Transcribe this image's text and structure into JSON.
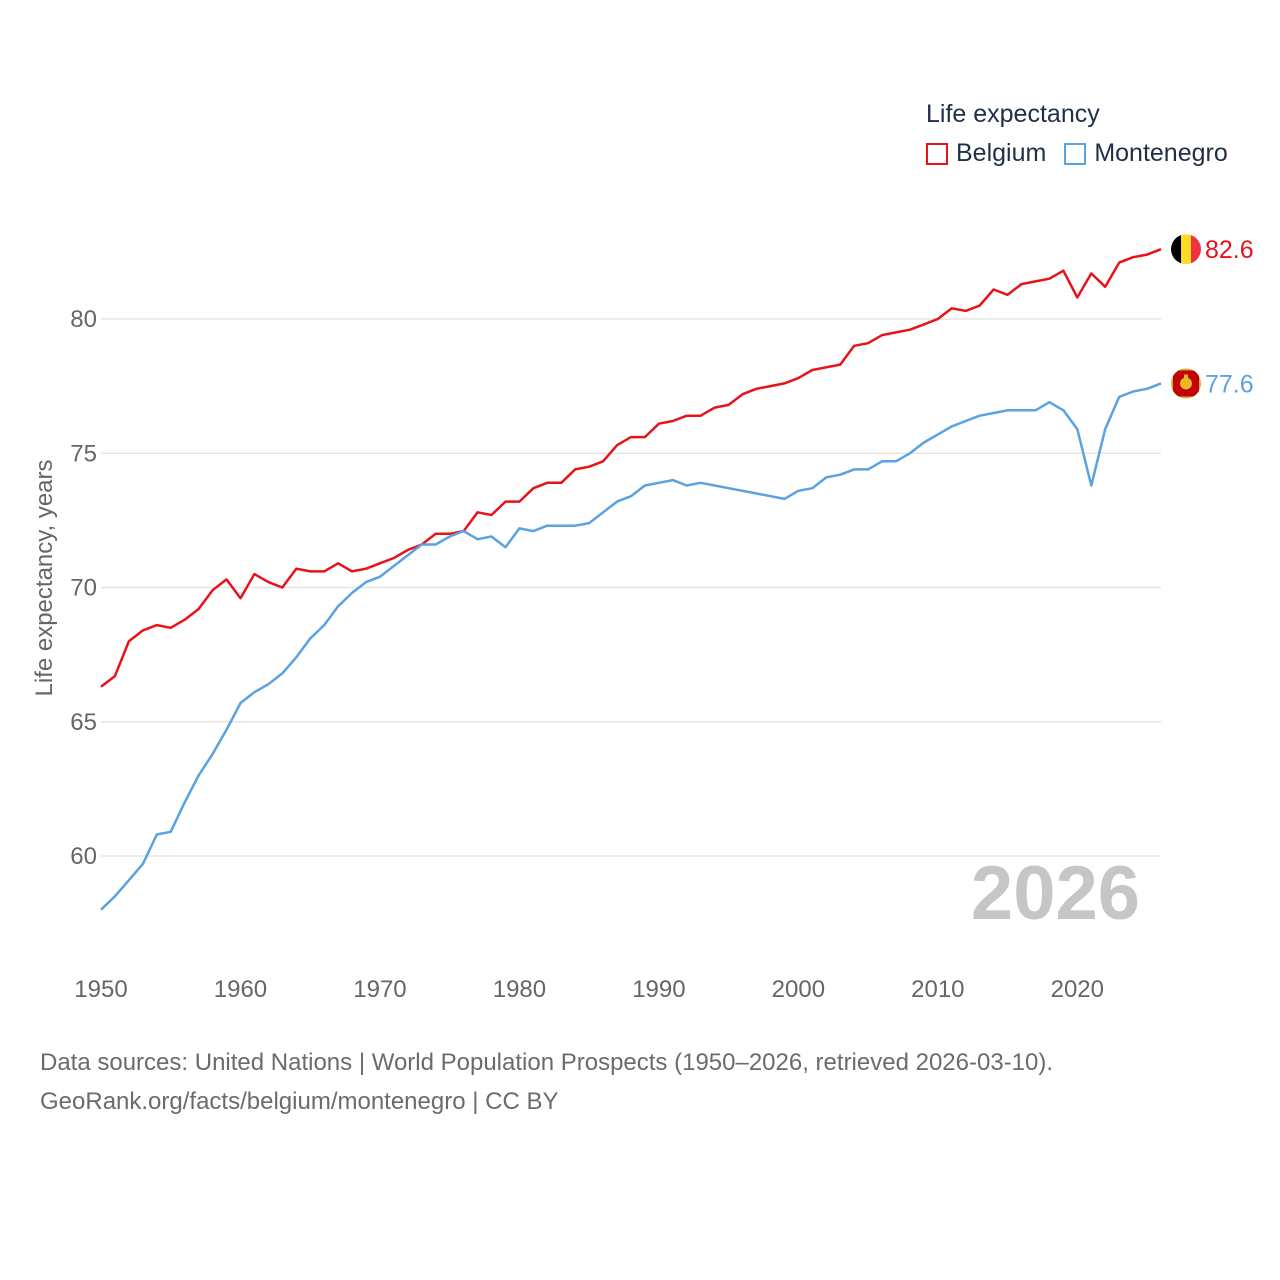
{
  "legend": {
    "title": "Life expectancy",
    "items": [
      {
        "name": "Belgium",
        "color": "#e8121b"
      },
      {
        "name": "Montenegro",
        "color": "#5aa2e0"
      }
    ]
  },
  "sources": {
    "line1": "Data sources: United Nations | World Population Prospects (1950–2026, retrieved 2026-03-10).",
    "line2": "GeoRank.org/facts/belgium/montenegro | CC BY"
  },
  "chart_data": {
    "type": "line",
    "title": "Life expectancy",
    "ylabel": "Life expectancy, years",
    "xlabel": "",
    "year_watermark": "2026",
    "xlim": [
      1950,
      2026
    ],
    "ylim": [
      58,
      84.5
    ],
    "xticks": [
      1950,
      1960,
      1970,
      1980,
      1990,
      2000,
      2010,
      2020
    ],
    "yticks": [
      60,
      65,
      70,
      75,
      80
    ],
    "grid": true,
    "x": [
      1950,
      1951,
      1952,
      1953,
      1954,
      1955,
      1956,
      1957,
      1958,
      1959,
      1960,
      1961,
      1962,
      1963,
      1964,
      1965,
      1966,
      1967,
      1968,
      1969,
      1970,
      1971,
      1972,
      1973,
      1974,
      1975,
      1976,
      1977,
      1978,
      1979,
      1980,
      1981,
      1982,
      1983,
      1984,
      1985,
      1986,
      1987,
      1988,
      1989,
      1990,
      1991,
      1992,
      1993,
      1994,
      1995,
      1996,
      1997,
      1998,
      1999,
      2000,
      2001,
      2002,
      2003,
      2004,
      2005,
      2006,
      2007,
      2008,
      2009,
      2010,
      2011,
      2012,
      2013,
      2014,
      2015,
      2016,
      2017,
      2018,
      2019,
      2020,
      2021,
      2022,
      2023,
      2024,
      2025,
      2026
    ],
    "series": [
      {
        "name": "Belgium",
        "color": "#e8121b",
        "end_label": "82.6",
        "values": [
          66.3,
          66.7,
          68.0,
          68.4,
          68.6,
          68.5,
          68.8,
          69.2,
          69.9,
          70.3,
          69.6,
          70.5,
          70.2,
          70.0,
          70.7,
          70.6,
          70.6,
          70.9,
          70.6,
          70.7,
          70.9,
          71.1,
          71.4,
          71.6,
          72.0,
          72.0,
          72.1,
          72.8,
          72.7,
          73.2,
          73.2,
          73.7,
          73.9,
          73.9,
          74.4,
          74.5,
          74.7,
          75.3,
          75.6,
          75.6,
          76.1,
          76.2,
          76.4,
          76.4,
          76.7,
          76.8,
          77.2,
          77.4,
          77.5,
          77.6,
          77.8,
          78.1,
          78.2,
          78.3,
          79.0,
          79.1,
          79.4,
          79.5,
          79.6,
          79.8,
          80.0,
          80.4,
          80.3,
          80.5,
          81.1,
          80.9,
          81.3,
          81.4,
          81.5,
          81.8,
          80.8,
          81.7,
          81.2,
          82.1,
          82.3,
          82.4,
          82.6
        ]
      },
      {
        "name": "Montenegro",
        "color": "#5aa2e0",
        "end_label": "77.6",
        "values": [
          58.0,
          58.5,
          59.1,
          59.7,
          60.8,
          60.9,
          62.0,
          63.0,
          63.8,
          64.7,
          65.7,
          66.1,
          66.4,
          66.8,
          67.4,
          68.1,
          68.6,
          69.3,
          69.8,
          70.2,
          70.4,
          70.8,
          71.2,
          71.6,
          71.6,
          71.9,
          72.1,
          71.8,
          71.9,
          71.5,
          72.2,
          72.1,
          72.3,
          72.3,
          72.3,
          72.4,
          72.8,
          73.2,
          73.4,
          73.8,
          73.9,
          74.0,
          73.8,
          73.9,
          73.8,
          73.7,
          73.6,
          73.5,
          73.4,
          73.3,
          73.6,
          73.7,
          74.1,
          74.2,
          74.4,
          74.4,
          74.7,
          74.7,
          75.0,
          75.4,
          75.7,
          76.0,
          76.2,
          76.4,
          76.5,
          76.6,
          76.6,
          76.6,
          76.9,
          76.6,
          75.9,
          73.8,
          75.9,
          77.1,
          77.3,
          77.4,
          77.6
        ]
      }
    ]
  }
}
